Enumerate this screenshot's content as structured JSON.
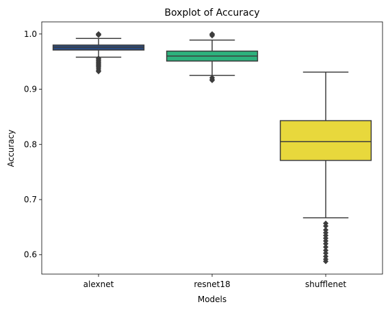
{
  "chart_data": {
    "type": "box",
    "title": "Boxplot of Accuracy",
    "xlabel": "Models",
    "ylabel": "Accuracy",
    "ylim": [
      0.565,
      1.022
    ],
    "yticks": [
      0.6,
      0.7,
      0.8,
      0.9,
      1.0
    ],
    "ytick_labels": [
      "0.6",
      "0.7",
      "0.8",
      "0.9",
      "1.0"
    ],
    "grid": false,
    "categories": [
      "alexnet",
      "resnet18",
      "shufflenet"
    ],
    "series": [
      {
        "category": "alexnet",
        "color": "#2a4b80",
        "whisker_low": 0.958,
        "q1": 0.971,
        "median": 0.976,
        "q3": 0.98,
        "whisker_high": 0.992,
        "outliers_high": [
          0.998,
          0.999,
          1.0,
          1.0,
          1.0
        ],
        "outliers_low": [
          0.956,
          0.954,
          0.952,
          0.95,
          0.948,
          0.946,
          0.944,
          0.942,
          0.94,
          0.937,
          0.934,
          0.932
        ]
      },
      {
        "category": "resnet18",
        "color": "#2db27d",
        "whisker_low": 0.925,
        "q1": 0.951,
        "median": 0.96,
        "q3": 0.969,
        "whisker_high": 0.989,
        "outliers_high": [
          0.997,
          0.999,
          1.0,
          1.0
        ],
        "outliers_low": [
          0.921,
          0.918,
          0.916
        ]
      },
      {
        "category": "shufflenet",
        "color": "#e8d83c",
        "whisker_low": 0.667,
        "q1": 0.771,
        "median": 0.805,
        "q3": 0.843,
        "whisker_high": 0.931,
        "outliers_high": [],
        "outliers_low": [
          0.657,
          0.652,
          0.645,
          0.64,
          0.635,
          0.63,
          0.625,
          0.62,
          0.614,
          0.608,
          0.603,
          0.597,
          0.592,
          0.588
        ]
      }
    ]
  }
}
